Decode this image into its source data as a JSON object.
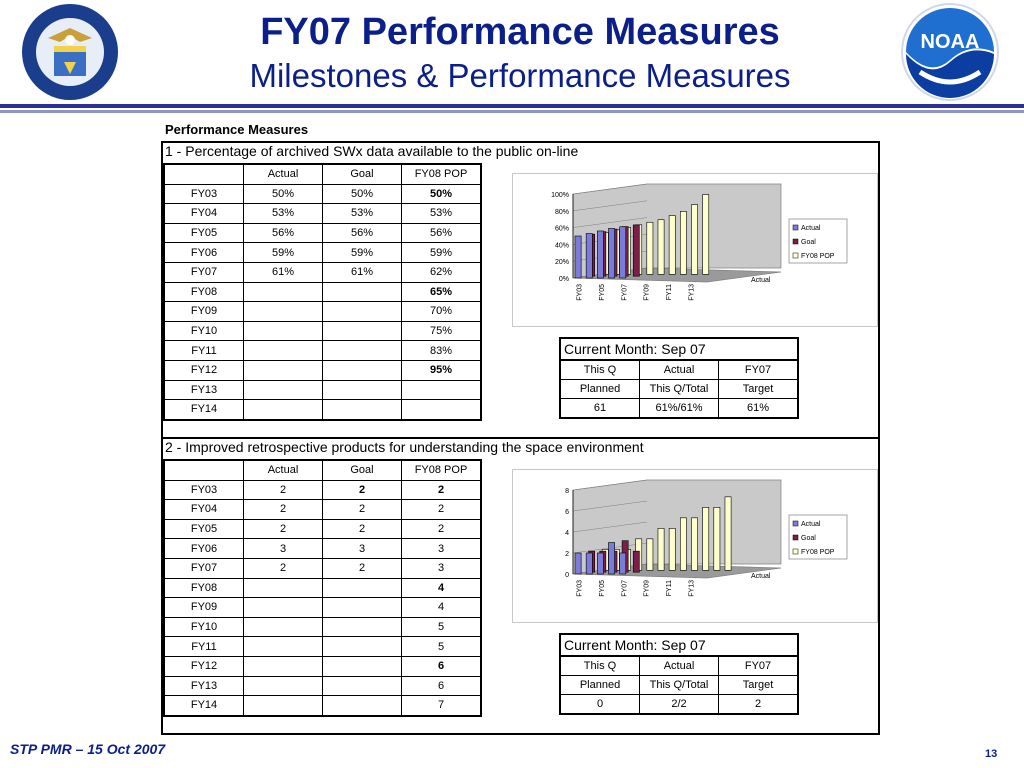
{
  "slide": {
    "title": "FY07 Performance Measures",
    "subtitle": "Milestones & Performance Measures",
    "section_label": "Performance Measures",
    "footer": "STP PMR – 15 Oct 2007",
    "page_number": "13",
    "left_logo": "department-of-commerce-seal",
    "right_logo": "noaa-logo",
    "colors": {
      "title": "#0b1f8a",
      "actual": "#7b7bd9",
      "goal": "#7b1f4a",
      "pop": "#ffffcc"
    }
  },
  "measures": [
    {
      "heading": "1 - Percentage of archived SWx data available to the public on-line",
      "columns": [
        "",
        "Actual",
        "Goal",
        "FY08 POP"
      ],
      "rows": [
        {
          "fy": "FY03",
          "actual": "50%",
          "goal": "50%",
          "pop": "50%",
          "pop_bold": true
        },
        {
          "fy": "FY04",
          "actual": "53%",
          "goal": "53%",
          "pop": "53%",
          "pop_bold": false
        },
        {
          "fy": "FY05",
          "actual": "56%",
          "goal": "56%",
          "pop": "56%",
          "pop_bold": false
        },
        {
          "fy": "FY06",
          "actual": "59%",
          "goal": "59%",
          "pop": "59%",
          "pop_bold": false
        },
        {
          "fy": "FY07",
          "actual": "61%",
          "goal": "61%",
          "pop": "62%",
          "pop_bold": false
        },
        {
          "fy": "FY08",
          "actual": "",
          "goal": "",
          "pop": "65%",
          "pop_bold": true
        },
        {
          "fy": "FY09",
          "actual": "",
          "goal": "",
          "pop": "70%",
          "pop_bold": false
        },
        {
          "fy": "FY10",
          "actual": "",
          "goal": "",
          "pop": "75%",
          "pop_bold": false
        },
        {
          "fy": "FY11",
          "actual": "",
          "goal": "",
          "pop": "83%",
          "pop_bold": false
        },
        {
          "fy": "FY12",
          "actual": "",
          "goal": "",
          "pop": "95%",
          "pop_bold": true
        },
        {
          "fy": "FY13",
          "actual": "",
          "goal": "",
          "pop": "",
          "pop_bold": false
        },
        {
          "fy": "FY14",
          "actual": "",
          "goal": "",
          "pop": "",
          "pop_bold": false
        }
      ],
      "current_month": {
        "label": "Current Month: Sep 07",
        "headers": [
          "This Q",
          "Actual",
          "FY07"
        ],
        "subheaders": [
          "Planned",
          "This Q/Total",
          "Target"
        ],
        "values": [
          "61",
          "61%/61%",
          "61%"
        ]
      }
    },
    {
      "heading": "2 - Improved retrospective products for understanding the space environment",
      "columns": [
        "",
        "Actual",
        "Goal",
        "FY08 POP"
      ],
      "rows": [
        {
          "fy": "FY03",
          "actual": "2",
          "goal": "2",
          "pop": "2",
          "goal_bold": true,
          "pop_bold": true
        },
        {
          "fy": "FY04",
          "actual": "2",
          "goal": "2",
          "pop": "2"
        },
        {
          "fy": "FY05",
          "actual": "2",
          "goal": "2",
          "pop": "2"
        },
        {
          "fy": "FY06",
          "actual": "3",
          "goal": "3",
          "pop": "3"
        },
        {
          "fy": "FY07",
          "actual": "2",
          "goal": "2",
          "pop": "3"
        },
        {
          "fy": "FY08",
          "actual": "",
          "goal": "",
          "pop": "4",
          "pop_bold": true
        },
        {
          "fy": "FY09",
          "actual": "",
          "goal": "",
          "pop": "4"
        },
        {
          "fy": "FY10",
          "actual": "",
          "goal": "",
          "pop": "5"
        },
        {
          "fy": "FY11",
          "actual": "",
          "goal": "",
          "pop": "5"
        },
        {
          "fy": "FY12",
          "actual": "",
          "goal": "",
          "pop": "6",
          "pop_bold": true
        },
        {
          "fy": "FY13",
          "actual": "",
          "goal": "",
          "pop": "6"
        },
        {
          "fy": "FY14",
          "actual": "",
          "goal": "",
          "pop": "7"
        }
      ],
      "current_month": {
        "label": "Current Month: Sep 07",
        "headers": [
          "This Q",
          "Actual",
          "FY07"
        ],
        "subheaders": [
          "Planned",
          "This Q/Total",
          "Target"
        ],
        "values": [
          "0",
          "2/2",
          "2"
        ]
      }
    }
  ],
  "chart_data": [
    {
      "type": "bar",
      "categories": [
        "FY03",
        "FY04",
        "FY05",
        "FY06",
        "FY07",
        "FY08",
        "FY09",
        "FY10",
        "FY11",
        "FY12",
        "FY13",
        "FY14"
      ],
      "x_tick_labels": [
        "FY03",
        "FY05",
        "FY07",
        "FY09",
        "FY11",
        "FY13"
      ],
      "depth_label": "Actual",
      "y_ticks": [
        "0%",
        "20%",
        "40%",
        "60%",
        "80%",
        "100%"
      ],
      "ylim": [
        0,
        100
      ],
      "legend": [
        "Actual",
        "Goal",
        "FY08 POP"
      ],
      "legend_position": "right",
      "series": [
        {
          "name": "Actual",
          "values": [
            50,
            53,
            56,
            59,
            61,
            null,
            null,
            null,
            null,
            null,
            null,
            null
          ]
        },
        {
          "name": "Goal",
          "values": [
            50,
            53,
            56,
            59,
            61,
            null,
            null,
            null,
            null,
            null,
            null,
            null
          ]
        },
        {
          "name": "FY08 POP",
          "values": [
            50,
            53,
            56,
            59,
            62,
            65,
            70,
            75,
            83,
            95,
            null,
            null
          ]
        }
      ]
    },
    {
      "type": "bar",
      "categories": [
        "FY03",
        "FY04",
        "FY05",
        "FY06",
        "FY07",
        "FY08",
        "FY09",
        "FY10",
        "FY11",
        "FY12",
        "FY13",
        "FY14"
      ],
      "x_tick_labels": [
        "FY03",
        "FY05",
        "FY07",
        "FY09",
        "FY11",
        "FY13"
      ],
      "depth_label": "Actual",
      "y_ticks": [
        "0",
        "2",
        "4",
        "6",
        "8"
      ],
      "ylim": [
        0,
        8
      ],
      "legend": [
        "Actual",
        "Goal",
        "FY08 POP"
      ],
      "legend_position": "right",
      "series": [
        {
          "name": "Actual",
          "values": [
            2,
            2,
            2,
            3,
            2,
            null,
            null,
            null,
            null,
            null,
            null,
            null
          ]
        },
        {
          "name": "Goal",
          "values": [
            2,
            2,
            2,
            3,
            2,
            null,
            null,
            null,
            null,
            null,
            null,
            null
          ]
        },
        {
          "name": "FY08 POP",
          "values": [
            2,
            2,
            2,
            3,
            3,
            4,
            4,
            5,
            5,
            6,
            6,
            7
          ]
        }
      ]
    }
  ]
}
